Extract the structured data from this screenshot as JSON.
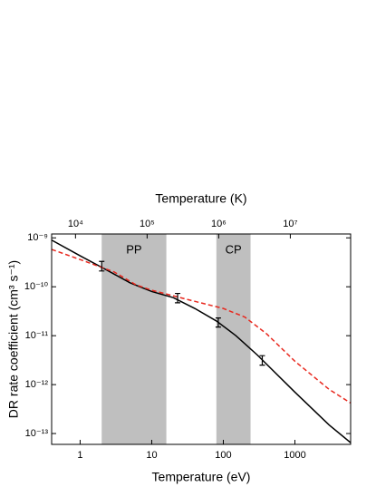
{
  "chart_data": {
    "type": "line",
    "xlabel": "Temperature (eV)",
    "x2label": "Temperature (K)",
    "ylabel": "DR rate coefficient (cm³ s⁻¹)",
    "xscale": "log",
    "yscale": "log",
    "xlim": [
      0.4,
      6000
    ],
    "xticks": [
      1,
      10,
      100,
      1000
    ],
    "x2lim": [
      4642,
      69600000
    ],
    "x2ticks": [
      {
        "value": 10000,
        "label": "10⁴"
      },
      {
        "value": 100000,
        "label": "10⁵"
      },
      {
        "value": 1000000,
        "label": "10⁶"
      },
      {
        "value": 10000000,
        "label": "10⁷"
      }
    ],
    "ylim": [
      6e-14,
      1.2e-09
    ],
    "yticks": [
      {
        "value": 1e-09,
        "label": "10⁻⁹"
      },
      {
        "value": 1e-10,
        "label": "10⁻¹⁰"
      },
      {
        "value": 1e-11,
        "label": "10⁻¹¹"
      },
      {
        "value": 1e-12,
        "label": "10⁻¹²"
      },
      {
        "value": 1e-13,
        "label": "10⁻¹³"
      }
    ],
    "shaded_regions": [
      {
        "label": "PP",
        "range": [
          2,
          16
        ],
        "color": "#bfbfbf"
      },
      {
        "label": "CP",
        "range": [
          80,
          240
        ],
        "color": "#bfbfbf"
      }
    ],
    "series": [
      {
        "color": "#000000",
        "dash": "solid",
        "x": [
          0.4,
          1,
          2,
          5,
          10,
          20,
          40,
          80,
          150,
          300,
          1000,
          3000,
          6000
        ],
        "values": [
          9e-10,
          4.3e-10,
          2.5e-10,
          1.2e-10,
          8e-11,
          6e-11,
          3.6e-11,
          2e-11,
          1e-11,
          4e-12,
          7e-13,
          1.5e-13,
          6.5e-14
        ]
      },
      {
        "color": "#e8281e",
        "dash": "dashed",
        "x": [
          0.4,
          1,
          3,
          6,
          10,
          30,
          100,
          200,
          400,
          1000,
          3000,
          6000
        ],
        "values": [
          5.8e-10,
          3.6e-10,
          2e-10,
          1.1e-10,
          8.5e-11,
          5.6e-11,
          3.6e-11,
          2.4e-11,
          1.1e-11,
          3e-12,
          8e-13,
          4.2e-13
        ]
      }
    ],
    "error_bars": {
      "color": "#000000",
      "x": [
        2,
        23,
        85,
        350
      ],
      "values": [
        2.7e-10,
        6e-11,
        1.9e-11,
        3.2e-12
      ],
      "errors": [
        6e-11,
        1.3e-11,
        4e-12,
        7e-13
      ]
    }
  }
}
